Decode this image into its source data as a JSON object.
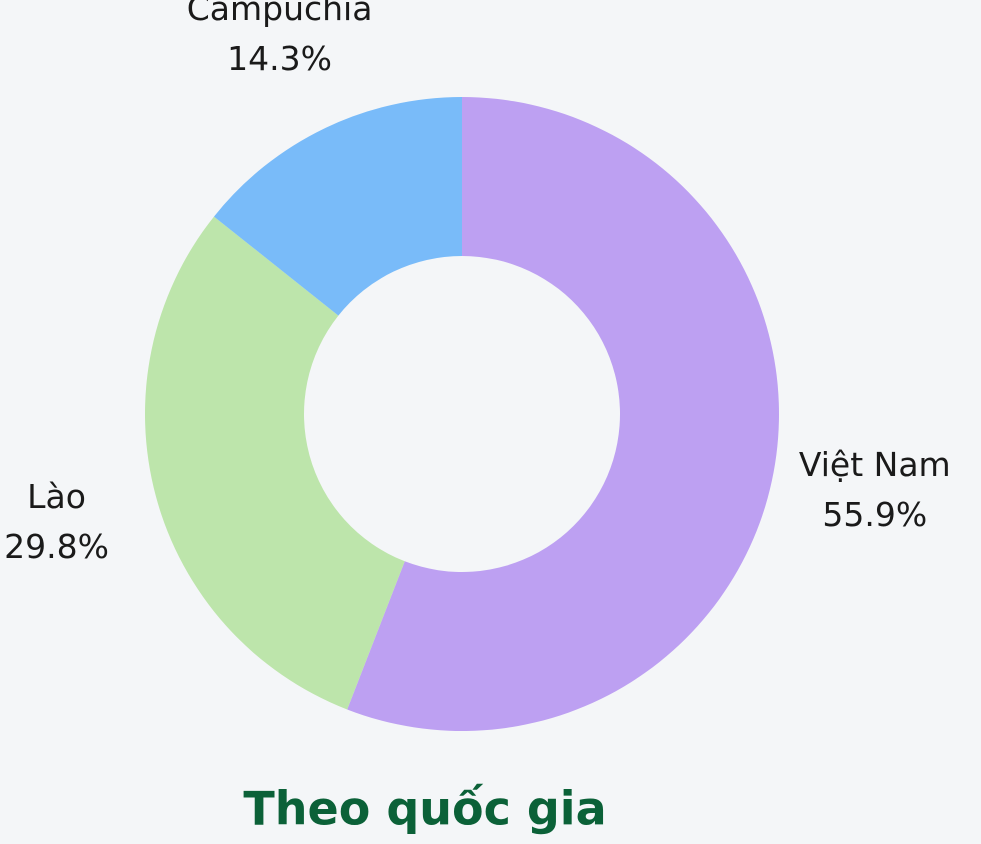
{
  "chart_data": {
    "type": "donut",
    "title": "Theo quốc gia",
    "categories": [
      "Việt Nam",
      "Lào",
      "Campuchia"
    ],
    "values": [
      55.9,
      29.8,
      14.3
    ],
    "value_labels": [
      "55.9%",
      "29.8%",
      "14.3%"
    ],
    "colors": [
      "#bda0f2",
      "#bde5ab",
      "#79bbf9"
    ]
  }
}
